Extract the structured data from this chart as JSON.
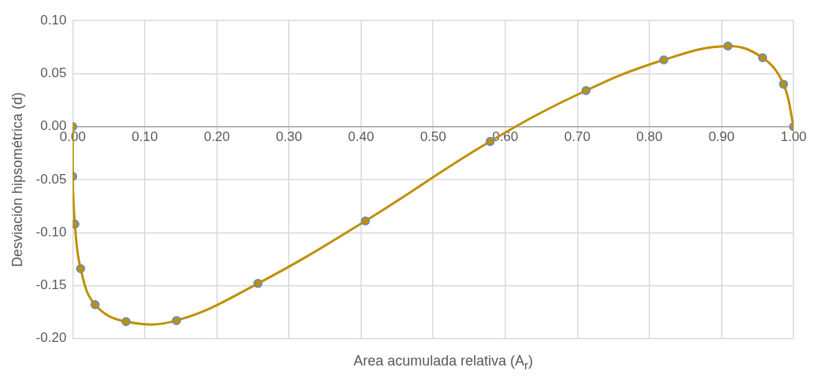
{
  "chart_data": {
    "type": "line",
    "xlabel": "Area acumulada relativa (A$_{r}$)",
    "ylabel": "Desviación hipsométrica (d)",
    "x": [
      0,
      0,
      0.003,
      0.011,
      0.031,
      0.074,
      0.144,
      0.257,
      0.406,
      0.579,
      0.712,
      0.82,
      0.909,
      0.957,
      0.986,
      1
    ],
    "series": [
      {
        "color": "#bf9000",
        "values": [
          0,
          -0.047,
          -0.092,
          -0.134,
          -0.168,
          -0.184,
          -0.183,
          -0.148,
          -0.089,
          -0.014,
          0.034,
          0.063,
          0.076,
          0.065,
          0.04,
          0
        ]
      }
    ],
    "xlim": [
      0,
      1
    ],
    "xticks": [
      {
        "value": 0,
        "label": "0.00"
      },
      {
        "value": 0.1,
        "label": "0.10"
      },
      {
        "value": 0.2,
        "label": "0.20"
      },
      {
        "value": 0.3,
        "label": "0.30"
      },
      {
        "value": 0.4,
        "label": "0.40"
      },
      {
        "value": 0.5,
        "label": "0.50"
      },
      {
        "value": 0.6,
        "label": "0.60"
      },
      {
        "value": 0.7,
        "label": "0.70"
      },
      {
        "value": 0.8,
        "label": "0.80"
      },
      {
        "value": 0.9,
        "label": "0.90"
      },
      {
        "value": 1,
        "label": "1.00"
      }
    ],
    "ylim": [
      -0.2,
      0.1
    ],
    "yticks": [
      {
        "value": -0.2,
        "label": "-0.20"
      },
      {
        "value": -0.15,
        "label": "-0.15"
      },
      {
        "value": -0.1,
        "label": "-0.10"
      },
      {
        "value": -0.05,
        "label": "-0.05"
      },
      {
        "value": 0,
        "label": "0.00"
      },
      {
        "value": 0.05,
        "label": "0.05"
      },
      {
        "value": 0.1,
        "label": "0.10"
      }
    ],
    "grid": true,
    "legend": false,
    "marker": "circle",
    "line_style": "solid"
  }
}
